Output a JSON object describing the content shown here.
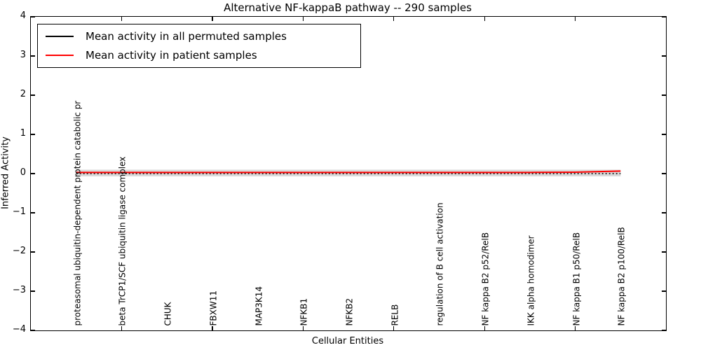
{
  "chart_data": {
    "type": "line",
    "title": "Alternative NF-kappaB pathway -- 290 samples",
    "xlabel": "Cellular Entities",
    "ylabel": "Inferred Activity",
    "ylim": [
      -4,
      4
    ],
    "xlim": [
      0,
      14
    ],
    "yticks": [
      4,
      3,
      2,
      1,
      0,
      -1,
      -2,
      -3,
      -4
    ],
    "ytick_labels": [
      "4",
      "3",
      "2",
      "1",
      "0",
      "−1",
      "−2",
      "−3",
      "−4"
    ],
    "xticks": [
      2,
      4,
      6,
      8,
      10,
      12
    ],
    "grid": false,
    "legend_position": "upper left",
    "categories": [
      "proteasomal ubiquitin-dependent protein catabolic pr",
      "beta TrCP1/SCF ubiquitin ligase complex",
      "CHUK",
      "FBXW11",
      "MAP3K14",
      "NFKB1",
      "NFKB2",
      "RELB",
      "regulation of B cell activation",
      "NF kappa B2 p52/RelB",
      "IKK alpha homodimer",
      "NF kappa B1 p50/RelB",
      "NF kappa B2 p100/RelB"
    ],
    "x": [
      1,
      2,
      3,
      4,
      5,
      6,
      7,
      8,
      9,
      10,
      11,
      12,
      13
    ],
    "series": [
      {
        "name": "Mean activity in all permuted samples",
        "color": "#000000",
        "style": "dotted",
        "values": [
          0,
          0,
          0,
          0,
          0,
          0,
          0,
          0,
          0,
          0,
          0,
          0,
          0
        ]
      },
      {
        "name": "Mean activity in patient samples",
        "color": "#ff0000",
        "style": "solid",
        "values": [
          0.03,
          0.03,
          0.03,
          0.03,
          0.03,
          0.03,
          0.03,
          0.03,
          0.03,
          0.03,
          0.03,
          0.035,
          0.065
        ]
      }
    ],
    "band": {
      "color": "#d9d9d9",
      "upper": 0.1,
      "lower": -0.07
    }
  }
}
